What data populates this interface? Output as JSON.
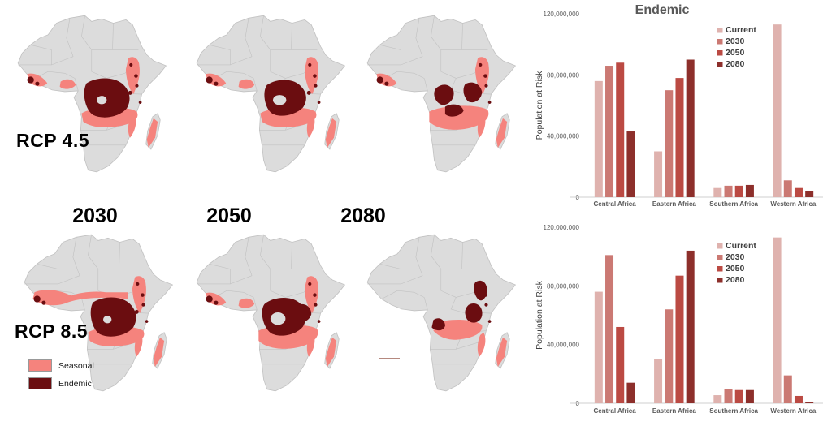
{
  "figure": {
    "rows": [
      {
        "rcp_label": "RCP 4.5"
      },
      {
        "rcp_label": "RCP 8.5"
      }
    ],
    "year_labels": [
      "2030",
      "2050",
      "2080"
    ],
    "map_legend": {
      "items": [
        {
          "label": "Seasonal",
          "color": "#F5837D"
        },
        {
          "label": "Endemic",
          "color": "#6B0D10"
        }
      ]
    },
    "map_colors": {
      "land": "#DCDCDC",
      "border": "#C2C2C2",
      "ocean": "#FFFFFF"
    }
  },
  "chart_data": [
    {
      "type": "bar",
      "title": "Endemic",
      "ylabel": "Population at Risk",
      "ylim": [
        0,
        120000000
      ],
      "ytick_labels": [
        "0",
        "40,000,000",
        "80,000,000",
        "120,000,000"
      ],
      "ytick_values": [
        0,
        40000000,
        80000000,
        120000000
      ],
      "categories": [
        "Central Africa",
        "Eastern Africa",
        "Southern Africa",
        "Western Africa"
      ],
      "legend_position": "top-right",
      "grid": false,
      "series": [
        {
          "name": "Current",
          "color": "#DFB2AE",
          "values": [
            76000000,
            30000000,
            6000000,
            113000000
          ]
        },
        {
          "name": "2030",
          "color": "#CB7973",
          "values": [
            86000000,
            70000000,
            7500000,
            11000000
          ]
        },
        {
          "name": "2050",
          "color": "#BB4A43",
          "values": [
            88000000,
            78000000,
            7500000,
            6000000
          ]
        },
        {
          "name": "2080",
          "color": "#8D2F2B",
          "values": [
            43000000,
            90000000,
            8000000,
            4000000
          ]
        }
      ]
    },
    {
      "type": "bar",
      "title": "",
      "ylabel": "Population at Risk",
      "ylim": [
        0,
        120000000
      ],
      "ytick_labels": [
        "0",
        "40,000,000",
        "80,000,000",
        "120,000,000"
      ],
      "ytick_values": [
        0,
        40000000,
        80000000,
        120000000
      ],
      "categories": [
        "Central Africa",
        "Eastern Africa",
        "Southern Africa",
        "Western Africa"
      ],
      "legend_position": "top-right",
      "grid": false,
      "series": [
        {
          "name": "Current",
          "color": "#DFB2AE",
          "values": [
            76000000,
            30000000,
            5500000,
            113000000
          ]
        },
        {
          "name": "2030",
          "color": "#CB7973",
          "values": [
            101000000,
            64000000,
            9500000,
            19000000
          ]
        },
        {
          "name": "2050",
          "color": "#BB4A43",
          "values": [
            52000000,
            87000000,
            9000000,
            5000000
          ]
        },
        {
          "name": "2080",
          "color": "#8D2F2B",
          "values": [
            14000000,
            104000000,
            9000000,
            1000000
          ]
        }
      ]
    }
  ]
}
